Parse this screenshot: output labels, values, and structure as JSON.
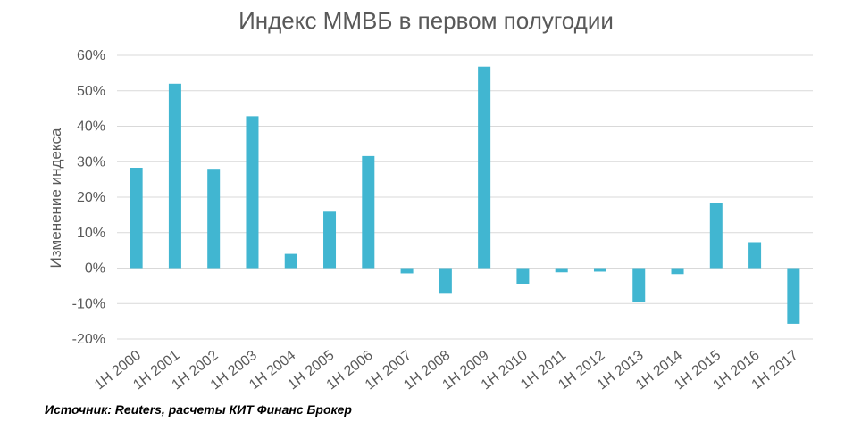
{
  "chart_data": {
    "type": "bar",
    "title": "Индекс ММВБ в первом полугодии",
    "ylabel": "Изменение индекса",
    "xlabel": "",
    "categories": [
      "1H 2000",
      "1H 2001",
      "1H 2002",
      "1H 2003",
      "1H 2004",
      "1H 2005",
      "1H 2006",
      "1H 2007",
      "1H 2008",
      "1H 2009",
      "1H 2010",
      "1H 2011",
      "1H 2012",
      "1H 2013",
      "1H 2014",
      "1H 2015",
      "1H 2016",
      "1H 2017"
    ],
    "values": [
      28.3,
      52,
      28,
      42.8,
      4,
      15.9,
      31.6,
      -1.5,
      -7,
      56.8,
      -4.4,
      -1.2,
      -1,
      -9.6,
      -1.7,
      18.4,
      7.3,
      -15.7
    ],
    "yticks": [
      "-20%",
      "-10%",
      "0%",
      "10%",
      "20%",
      "30%",
      "40%",
      "50%",
      "60%"
    ],
    "ytick_values": [
      -20,
      -10,
      0,
      10,
      20,
      30,
      40,
      50,
      60
    ],
    "ylim": [
      -20,
      60
    ],
    "grid": true,
    "legend": "none",
    "bar_color": "#41B6D1",
    "grid_color": "#D9D9D9"
  },
  "source": "Источник: Reuters, расчеты КИТ Финанс Брокер"
}
